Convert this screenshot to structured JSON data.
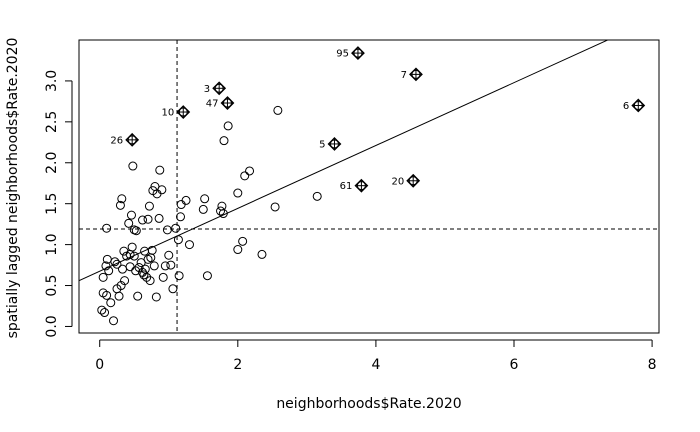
{
  "chart_data": {
    "type": "scatter",
    "xlabel": "neighborhoods$Rate.2020",
    "ylabel": "spatially lagged neighborhoods$Rate.2020",
    "xlim": [
      -0.3,
      8.1
    ],
    "ylim": [
      -0.08,
      3.5
    ],
    "x_ticks": [
      "0",
      "2",
      "4",
      "6",
      "8"
    ],
    "y_ticks": [
      "0.0",
      "0.5",
      "1.0",
      "1.5",
      "2.0",
      "2.5",
      "3.0"
    ],
    "x_tick_values": [
      0,
      2,
      4,
      6,
      8
    ],
    "y_tick_values": [
      0,
      0.5,
      1.0,
      1.5,
      2.0,
      2.5,
      3.0
    ],
    "mean_x": 1.12,
    "mean_y": 1.19,
    "regression": {
      "intercept": 0.675,
      "slope": 0.384
    },
    "points": [
      [
        0.03,
        0.2
      ],
      [
        0.07,
        0.17
      ],
      [
        0.05,
        0.41
      ],
      [
        0.1,
        0.38
      ],
      [
        0.16,
        0.29
      ],
      [
        0.2,
        0.07
      ],
      [
        0.25,
        0.46
      ],
      [
        0.28,
        0.37
      ],
      [
        0.31,
        0.5
      ],
      [
        0.36,
        0.56
      ],
      [
        0.05,
        0.6
      ],
      [
        0.13,
        0.68
      ],
      [
        0.09,
        0.74
      ],
      [
        0.11,
        0.82
      ],
      [
        0.22,
        0.79
      ],
      [
        0.25,
        0.76
      ],
      [
        0.33,
        0.7
      ],
      [
        0.35,
        0.92
      ],
      [
        0.39,
        0.86
      ],
      [
        0.44,
        0.88
      ],
      [
        0.47,
        0.97
      ],
      [
        0.44,
        0.73
      ],
      [
        0.5,
        0.86
      ],
      [
        0.52,
        0.68
      ],
      [
        0.55,
        0.37
      ],
      [
        0.57,
        0.72
      ],
      [
        0.6,
        0.78
      ],
      [
        0.62,
        0.66
      ],
      [
        0.64,
        0.63
      ],
      [
        0.66,
        0.7
      ],
      [
        0.68,
        0.6
      ],
      [
        0.7,
        0.82
      ],
      [
        0.73,
        0.56
      ],
      [
        0.76,
        0.93
      ],
      [
        0.79,
        0.74
      ],
      [
        0.82,
        0.36
      ],
      [
        0.86,
        1.32
      ],
      [
        0.87,
        1.91
      ],
      [
        0.9,
        1.67
      ],
      [
        0.92,
        0.6
      ],
      [
        0.95,
        0.74
      ],
      [
        0.98,
        1.18
      ],
      [
        1.0,
        0.87
      ],
      [
        1.03,
        0.75
      ],
      [
        1.06,
        0.46
      ],
      [
        1.1,
        1.2
      ],
      [
        1.14,
        1.06
      ],
      [
        1.15,
        0.62
      ],
      [
        1.18,
        1.49
      ],
      [
        1.17,
        1.34
      ],
      [
        1.25,
        1.54
      ],
      [
        1.3,
        1.0
      ],
      [
        0.1,
        1.2
      ],
      [
        0.32,
        1.56
      ],
      [
        0.3,
        1.48
      ],
      [
        0.42,
        1.26
      ],
      [
        0.46,
        1.36
      ],
      [
        0.5,
        1.18
      ],
      [
        0.53,
        1.17
      ],
      [
        0.48,
        1.96
      ],
      [
        0.62,
        1.3
      ],
      [
        0.7,
        1.31
      ],
      [
        0.72,
        1.47
      ],
      [
        0.77,
        1.66
      ],
      [
        0.8,
        1.71
      ],
      [
        0.83,
        1.62
      ],
      [
        0.65,
        0.92
      ],
      [
        0.74,
        0.84
      ],
      [
        1.5,
        1.43
      ],
      [
        1.52,
        1.56
      ],
      [
        1.56,
        0.62
      ],
      [
        1.75,
        1.41
      ],
      [
        1.77,
        1.47
      ],
      [
        1.79,
        1.38
      ],
      [
        1.8,
        2.27
      ],
      [
        1.86,
        2.45
      ],
      [
        2.0,
        1.63
      ],
      [
        2.0,
        0.94
      ],
      [
        2.07,
        1.04
      ],
      [
        2.1,
        1.84
      ],
      [
        2.17,
        1.9
      ],
      [
        2.35,
        0.88
      ],
      [
        2.54,
        1.46
      ],
      [
        2.58,
        2.64
      ],
      [
        3.15,
        1.59
      ]
    ],
    "labeled_points": [
      {
        "label": "95",
        "x": 3.74,
        "y": 3.34
      },
      {
        "label": "7",
        "x": 4.58,
        "y": 3.08
      },
      {
        "label": "3",
        "x": 1.73,
        "y": 2.91
      },
      {
        "label": "47",
        "x": 1.85,
        "y": 2.73
      },
      {
        "label": "10",
        "x": 1.21,
        "y": 2.62
      },
      {
        "label": "6",
        "x": 7.8,
        "y": 2.7
      },
      {
        "label": "26",
        "x": 0.47,
        "y": 2.28
      },
      {
        "label": "5",
        "x": 3.4,
        "y": 2.23
      },
      {
        "label": "20",
        "x": 4.54,
        "y": 1.78
      },
      {
        "label": "61",
        "x": 3.79,
        "y": 1.72
      }
    ]
  }
}
